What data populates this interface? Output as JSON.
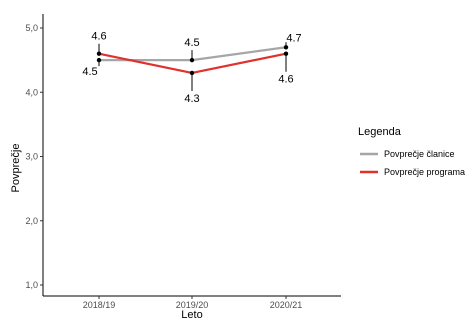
{
  "chart_data": {
    "type": "line",
    "categories": [
      "2018/19",
      "2019/20",
      "2020/21"
    ],
    "series": [
      {
        "name": "Povprečje članice",
        "values": [
          4.5,
          4.5,
          4.7
        ],
        "color": "#a6a6a6"
      },
      {
        "name": "Povprečje programa",
        "values": [
          4.6,
          4.3,
          4.6
        ],
        "color": "#e0312f"
      }
    ],
    "xlabel": "Leto",
    "ylabel": "Povprečje",
    "ylim": [
      1,
      5
    ],
    "yticks": [
      "1,0",
      "2,0",
      "3,0",
      "4,0",
      "5,0"
    ],
    "ytick_values": [
      1,
      2,
      3,
      4,
      5
    ],
    "legend": {
      "title": "Legenda",
      "position": "right"
    },
    "data_labels": [
      {
        "category": "2018/19",
        "series": "Povprečje programa",
        "text": "4.6",
        "offset": "above"
      },
      {
        "category": "2018/19",
        "series": "Povprečje članice",
        "text": "4.5",
        "offset": "below"
      },
      {
        "category": "2019/20",
        "series": "Povprečje članice",
        "text": "4.5",
        "offset": "above"
      },
      {
        "category": "2019/20",
        "series": "Povprečje programa",
        "text": "4.3",
        "offset": "below-long"
      },
      {
        "category": "2020/21",
        "series": "Povprečje članice",
        "text": "4.7",
        "offset": "above-right"
      },
      {
        "category": "2020/21",
        "series": "Povprečje programa",
        "text": "4.6",
        "offset": "below-long"
      }
    ],
    "grid": false
  }
}
